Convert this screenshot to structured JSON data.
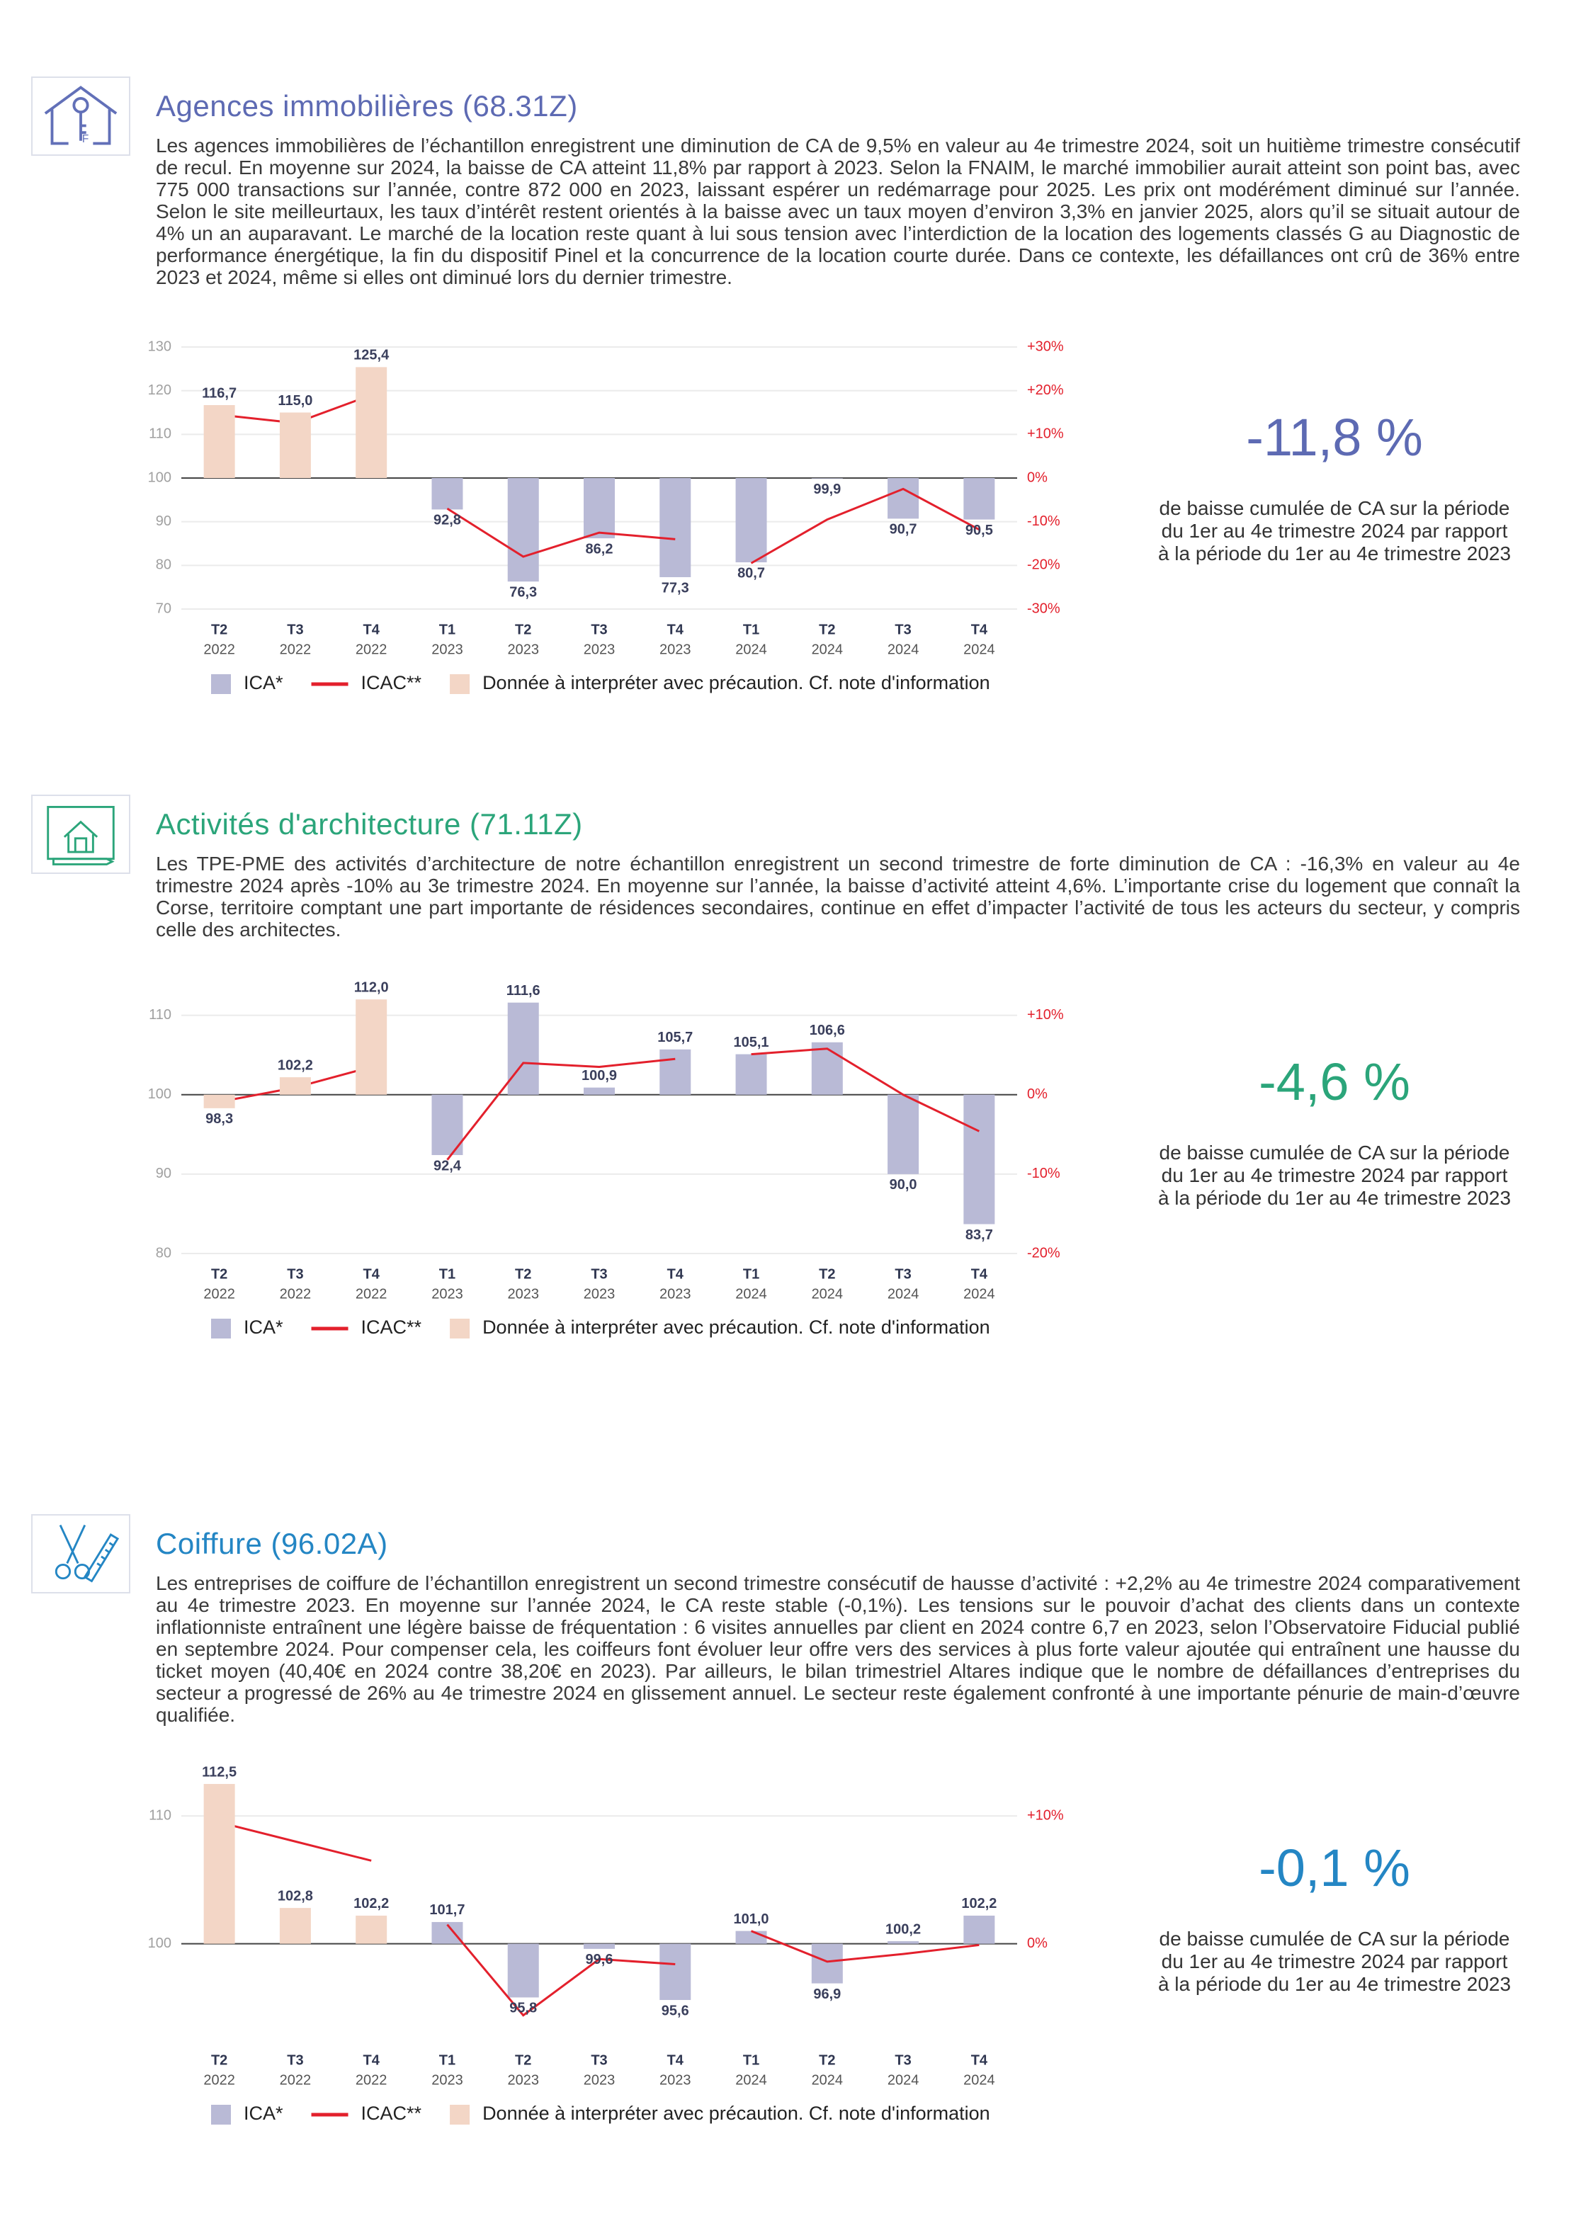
{
  "sections": [
    {
      "title": "Agences immobilières (68.31Z)",
      "text": "Les agences immobilières de l’échantillon enregistrent une diminution de CA de 9,5% en valeur au 4e trimestre 2024, soit un huitième trimestre consécutif de recul. En moyenne sur 2024, la baisse de CA atteint 11,8% par rapport à 2023. Selon la FNAIM, le marché immobilier aurait atteint son point bas, avec 775 000 transactions sur l’année, contre 872 000 en 2023, laissant espérer un redémarrage pour 2025. Les prix ont modérément diminué sur l’année. Selon le site meilleurtaux, les taux d’intérêt restent orientés à la baisse avec un taux moyen d’environ 3,3% en janvier 2025, alors qu’il se situait autour de 4% un an auparavant. Le marché de la location reste quant à lui sous tension avec l’interdiction de la location des logements classés G au Diagnostic de performance énergétique, la fin du dispositif Pinel et la concurrence de la location courte durée. Dans ce contexte, les défaillances ont crû de 36% entre 2023 et 2024, même si elles ont diminué lors du dernier trimestre.",
      "kpi": "-11,8 %",
      "kpi_text": "de baisse cumulée de CA sur la période du 1er au 4e trimestre 2024 par rapport à la période du 1er au 4e trimestre 2023"
    },
    {
      "title": "Activités d'architecture (71.11Z)",
      "text": "Les TPE-PME des activités d’architecture de notre échantillon enregistrent un second trimestre de forte diminution de CA : -16,3% en valeur au 4e trimestre 2024 après -10% au 3e trimestre 2024. En moyenne sur l’année, la baisse d’activité atteint 4,6%. L’importante crise du logement que connaît la Corse, territoire comptant une part importante de résidences secondaires, continue en effet d’impacter l’activité de tous les acteurs du secteur, y compris celle des architectes.",
      "kpi": "-4,6 %",
      "kpi_text": "de baisse cumulée de CA sur la période du 1er au 4e trimestre 2024 par rapport à la période du 1er au 4e trimestre 2023"
    },
    {
      "title": "Coiffure (96.02A)",
      "text": "Les entreprises de coiffure de l’échantillon enregistrent un second trimestre consécutif de hausse d’activité : +2,2% au 4e trimestre 2024 comparativement au 4e trimestre 2023. En moyenne sur l’année 2024, le CA reste stable (-0,1%). Les tensions sur le pouvoir d’achat des clients dans un contexte inflationniste entraînent une légère baisse de fréquentation : 6 visites annuelles par client en 2024 contre 6,7 en 2023, selon l’Observatoire Fiducial publié en septembre 2024. Pour compenser cela, les coiffeurs font évoluer leur offre vers des services à plus forte valeur ajoutée qui entraînent une hausse du ticket moyen (40,40€ en 2024 contre 38,20€ en 2023). Par ailleurs, le bilan trimestriel Altares indique que le nombre de défaillances d’entreprises du secteur a progressé de 26% au 4e trimestre 2024 en glissement annuel. Le secteur reste également confronté à une importante pénurie de main-d’œuvre qualifiée.",
      "kpi": "-0,1 %",
      "kpi_text": "de baisse cumulée de CA sur la période du 1er au 4e trimestre 2024 par rapport à la période du 1er au 4e trimestre 2023"
    }
  ],
  "chart_data": [
    {
      "type": "bar",
      "categories": [
        [
          "T2",
          "2022"
        ],
        [
          "T3",
          "2022"
        ],
        [
          "T4",
          "2022"
        ],
        [
          "T1",
          "2023"
        ],
        [
          "T2",
          "2023"
        ],
        [
          "T3",
          "2023"
        ],
        [
          "T4",
          "2023"
        ],
        [
          "T1",
          "2024"
        ],
        [
          "T2",
          "2024"
        ],
        [
          "T3",
          "2024"
        ],
        [
          "T4",
          "2024"
        ]
      ],
      "bar_base": 100,
      "grid": true,
      "ylim": [
        70,
        130
      ],
      "yticks": [
        70,
        80,
        90,
        100,
        110,
        120,
        130
      ],
      "y2lim": [
        -30,
        30
      ],
      "y2ticks": [
        {
          "value": -30,
          "label": "-30%"
        },
        {
          "value": -20,
          "label": "-20%"
        },
        {
          "value": -10,
          "label": "-10%"
        },
        {
          "value": 0,
          "label": "0%"
        },
        {
          "value": 10,
          "label": "+10%"
        },
        {
          "value": 20,
          "label": "+20%"
        },
        {
          "value": 30,
          "label": "+30%"
        }
      ],
      "series": [
        {
          "name": "ICA*",
          "color": "#b9bad6",
          "values": [
            null,
            null,
            null,
            92.8,
            76.3,
            86.2,
            77.3,
            80.7,
            99.9,
            90.7,
            90.5
          ],
          "value_labels": [
            null,
            null,
            null,
            "92,8",
            "76,3",
            "86,2",
            "77,3",
            "80,7",
            "99,9",
            "90,7",
            "90,5"
          ]
        },
        {
          "name": "ICAC**",
          "type": "line",
          "axis": "y2",
          "color": "#e3202c",
          "values": [
            14.5,
            12.6,
            19,
            -7,
            -18,
            -12.5,
            -14,
            -19.5,
            -9.5,
            -2.5,
            -11.8
          ]
        },
        {
          "name": "Donnée à interpréter avec précaution. Cf. note d'information",
          "color": "#f3d6c6",
          "values": [
            116.7,
            115.0,
            125.4,
            null,
            null,
            null,
            null,
            null,
            null,
            null,
            null
          ],
          "value_labels": [
            "116,7",
            "115,0",
            "125,4",
            null,
            null,
            null,
            null,
            null,
            null,
            null,
            null
          ]
        }
      ]
    },
    {
      "type": "bar",
      "categories": [
        [
          "T2",
          "2022"
        ],
        [
          "T3",
          "2022"
        ],
        [
          "T4",
          "2022"
        ],
        [
          "T1",
          "2023"
        ],
        [
          "T2",
          "2023"
        ],
        [
          "T3",
          "2023"
        ],
        [
          "T4",
          "2023"
        ],
        [
          "T1",
          "2024"
        ],
        [
          "T2",
          "2024"
        ],
        [
          "T3",
          "2024"
        ],
        [
          "T4",
          "2024"
        ]
      ],
      "bar_base": 100,
      "grid": true,
      "ylim": [
        80,
        113
      ],
      "yticks": [
        80,
        90,
        100,
        110
      ],
      "y2lim": [
        -20,
        13
      ],
      "y2ticks": [
        {
          "value": -20,
          "label": "-20%"
        },
        {
          "value": -10,
          "label": "-10%"
        },
        {
          "value": 0,
          "label": "0%"
        },
        {
          "value": 10,
          "label": "+10%"
        }
      ],
      "series": [
        {
          "name": "ICA*",
          "color": "#b9bad6",
          "values": [
            null,
            null,
            null,
            92.4,
            111.6,
            100.9,
            105.7,
            105.1,
            106.6,
            90.0,
            83.7
          ],
          "value_labels": [
            null,
            null,
            null,
            "92,4",
            "111,6",
            "100,9",
            "105,7",
            "105,1",
            "106,6",
            "90,0",
            "83,7"
          ]
        },
        {
          "name": "ICAC**",
          "type": "line",
          "axis": "y2",
          "color": "#e3202c",
          "values": [
            -0.9,
            0.9,
            3.5,
            -8.2,
            4,
            3.5,
            4.5,
            5.1,
            5.8,
            0,
            -4.6
          ]
        },
        {
          "name": "Donnée à interpréter avec précaution. Cf. note d'information",
          "color": "#f3d6c6",
          "values": [
            98.3,
            102.2,
            112.0,
            null,
            null,
            null,
            null,
            null,
            null,
            null,
            null
          ],
          "value_labels": [
            "98,3",
            "102,2",
            "112,0",
            null,
            null,
            null,
            null,
            null,
            null,
            null,
            null
          ]
        }
      ]
    },
    {
      "type": "bar",
      "categories": [
        [
          "T2",
          "2022"
        ],
        [
          "T3",
          "2022"
        ],
        [
          "T4",
          "2022"
        ],
        [
          "T1",
          "2023"
        ],
        [
          "T2",
          "2023"
        ],
        [
          "T3",
          "2023"
        ],
        [
          "T4",
          "2023"
        ],
        [
          "T1",
          "2024"
        ],
        [
          "T2",
          "2024"
        ],
        [
          "T3",
          "2024"
        ],
        [
          "T4",
          "2024"
        ]
      ],
      "bar_base": 100,
      "grid": true,
      "ylim": [
        92.5,
        113
      ],
      "yticks": [
        100,
        110
      ],
      "y2lim": [
        -7.5,
        13
      ],
      "y2ticks": [
        {
          "value": 0,
          "label": "0%"
        },
        {
          "value": 10,
          "label": "+10%"
        }
      ],
      "series": [
        {
          "name": "ICA*",
          "color": "#b9bad6",
          "values": [
            null,
            null,
            null,
            101.7,
            95.8,
            99.6,
            95.6,
            101.0,
            96.9,
            100.2,
            102.2
          ],
          "value_labels": [
            null,
            null,
            null,
            "101,7",
            "95,8",
            "99,6",
            "95,6",
            "101,0",
            "96,9",
            "100,2",
            "102,2"
          ]
        },
        {
          "name": "ICAC**",
          "type": "line",
          "axis": "y2",
          "color": "#e3202c",
          "values": [
            9.5,
            8,
            6.5,
            1.5,
            -5.6,
            -1.2,
            -1.6,
            1,
            -1.4,
            -0.8,
            -0.1
          ]
        },
        {
          "name": "Donnée à interpréter avec précaution. Cf. note d'information",
          "color": "#f3d6c6",
          "values": [
            112.5,
            102.8,
            102.2,
            null,
            null,
            null,
            null,
            null,
            null,
            null,
            null
          ],
          "value_labels": [
            "112,5",
            "102,8",
            "102,2",
            null,
            null,
            null,
            null,
            null,
            null,
            null,
            null
          ]
        }
      ]
    }
  ]
}
